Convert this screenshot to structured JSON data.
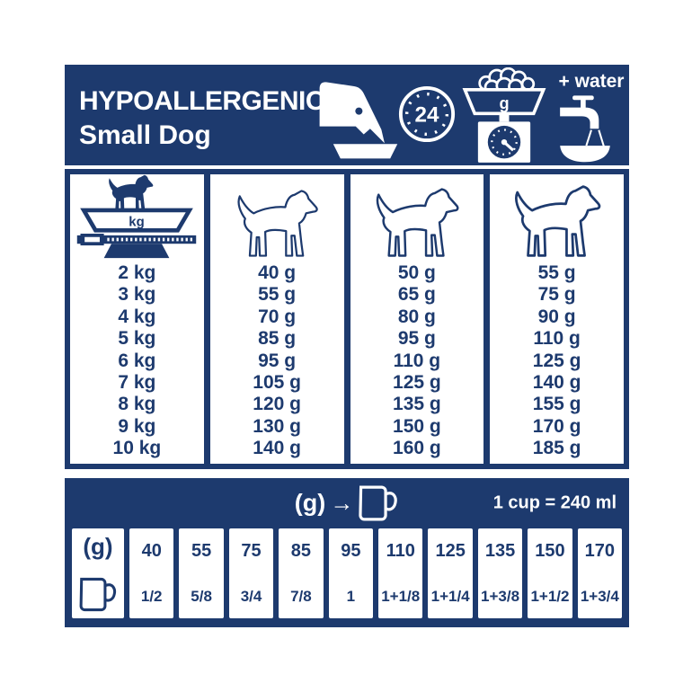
{
  "colors": {
    "navy": "#1d3a6e",
    "white": "#ffffff"
  },
  "header": {
    "title_line1": "HYPOALLERGENIC",
    "title_line2": "Small Dog",
    "clock_label": "24",
    "scale_pan_unit": "g",
    "water_label": "+ water"
  },
  "feeding_table": {
    "weight_pan_label": "kg",
    "weights": [
      "2 kg",
      "3 kg",
      "4 kg",
      "5 kg",
      "6 kg",
      "7 kg",
      "8 kg",
      "9 kg",
      "10 kg"
    ],
    "ration_columns": [
      {
        "name": "ration-column-1",
        "values": [
          "40 g",
          "55 g",
          "70 g",
          "85 g",
          "95 g",
          "105 g",
          "120 g",
          "130 g",
          "140 g"
        ]
      },
      {
        "name": "ration-column-2",
        "values": [
          "50 g",
          "65 g",
          "80 g",
          "95 g",
          "110 g",
          "125 g",
          "135 g",
          "150 g",
          "160 g"
        ]
      },
      {
        "name": "ration-column-3",
        "values": [
          "55 g",
          "75 g",
          "90 g",
          "110 g",
          "125 g",
          "140 g",
          "155 g",
          "170 g",
          "185 g"
        ]
      }
    ]
  },
  "conversion": {
    "header_grams_label": "(g)",
    "arrow": "→",
    "cup_equivalence": "1 cup = 240 ml",
    "row_grams_label": "(g)",
    "pairs": [
      {
        "grams": "40",
        "cups": "1/2"
      },
      {
        "grams": "55",
        "cups": "5/8"
      },
      {
        "grams": "75",
        "cups": "3/4"
      },
      {
        "grams": "85",
        "cups": "7/8"
      },
      {
        "grams": "95",
        "cups": "1"
      },
      {
        "grams": "110",
        "cups": "1+1/8"
      },
      {
        "grams": "125",
        "cups": "1+1/4"
      },
      {
        "grams": "135",
        "cups": "1+3/8"
      },
      {
        "grams": "150",
        "cups": "1+1/2"
      },
      {
        "grams": "170",
        "cups": "1+3/4"
      }
    ]
  }
}
